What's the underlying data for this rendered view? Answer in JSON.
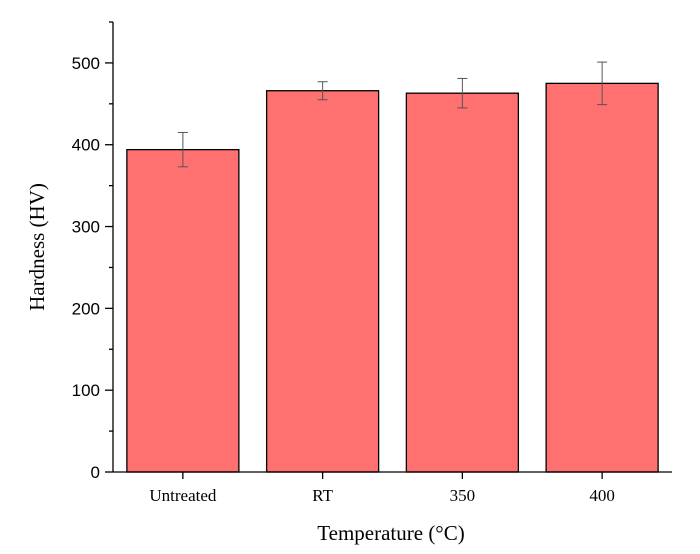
{
  "chart_data": {
    "type": "bar",
    "categories": [
      "Untreated",
      "RT",
      "350",
      "400"
    ],
    "values": [
      394,
      466,
      463,
      475
    ],
    "errors": [
      21,
      11,
      18,
      26
    ],
    "xlabel": "Temperature (°C)",
    "ylabel": "Hardness (HV)",
    "ylim": [
      0,
      550
    ],
    "yticks": [
      0,
      100,
      200,
      300,
      400,
      500
    ],
    "grid": false,
    "legend": "none",
    "colors": {
      "bar_fill": "#ff7070",
      "bar_stroke": "#000000",
      "error_bar": "#555555",
      "axis": "#000000"
    }
  }
}
